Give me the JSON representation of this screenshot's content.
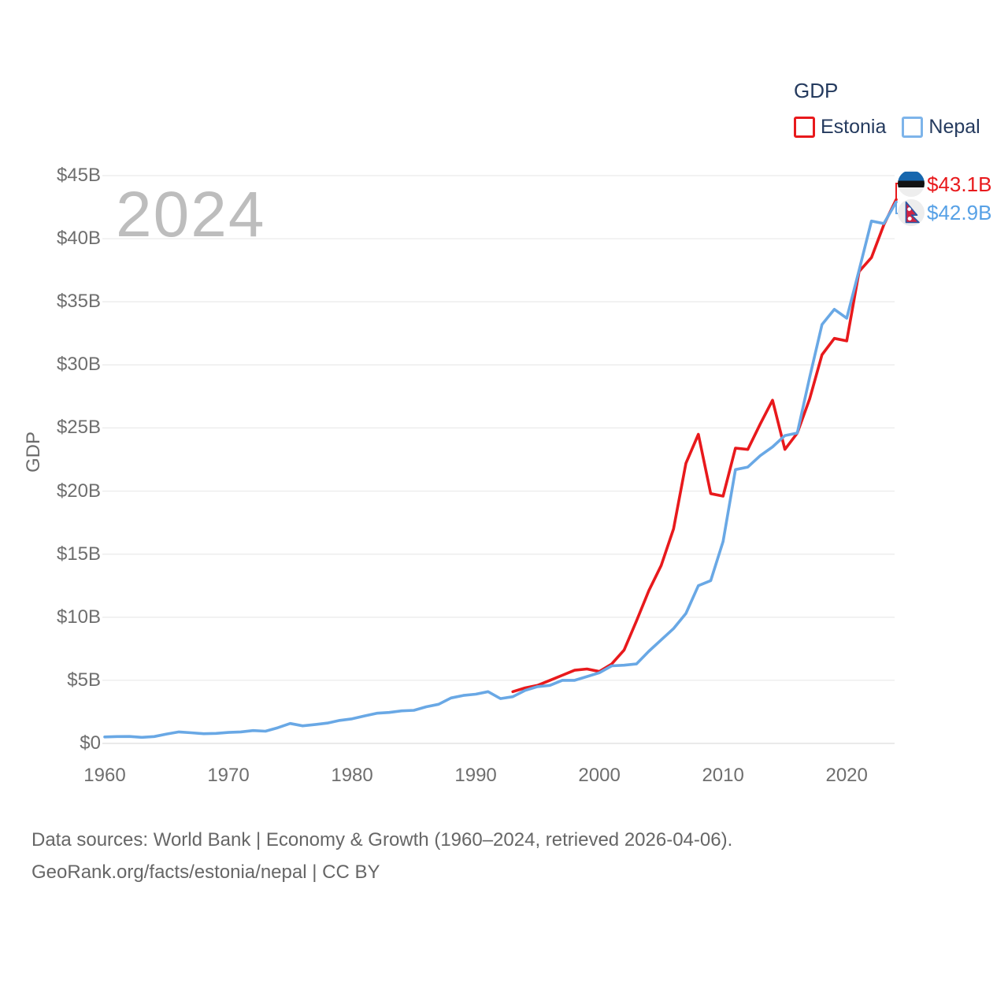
{
  "legend": {
    "title": "GDP",
    "items": [
      {
        "label": "Estonia",
        "color": "#e8191c"
      },
      {
        "label": "Nepal",
        "color": "#7db4ea"
      }
    ]
  },
  "watermark": "2024",
  "y_axis": {
    "title": "GDP",
    "ticks": [
      "$0",
      "$5B",
      "$10B",
      "$15B",
      "$20B",
      "$25B",
      "$30B",
      "$35B",
      "$40B",
      "$45B"
    ]
  },
  "x_axis": {
    "ticks": [
      "1960",
      "1970",
      "1980",
      "1990",
      "2000",
      "2010",
      "2020"
    ]
  },
  "end_labels": {
    "estonia": "$43.1B",
    "nepal": "$42.9B"
  },
  "footer": {
    "line1": "Data sources: World Bank | Economy & Growth (1960–2024, retrieved 2026-04-06).",
    "line2": "GeoRank.org/facts/estonia/nepal | CC BY"
  },
  "colors": {
    "estonia_line": "#e8191c",
    "nepal_line": "#69a8e5",
    "grid": "#ebebeb",
    "grid_zero": "#dedede",
    "axis_text": "#6e6e6e",
    "legend_text": "#243a5e",
    "watermark": "#bdbdbd",
    "footer_text": "#666666",
    "estonia_flag_blue": "#1767ae",
    "nepal_flag_crimson": "#cf2342",
    "nepal_flag_border": "#2757a5"
  },
  "chart_data": {
    "type": "line",
    "title": "GDP",
    "xlabel": "",
    "ylabel": "GDP",
    "xlim": [
      1960,
      2024
    ],
    "ylim": [
      0,
      45
    ],
    "grid": "horizontal",
    "legend_position": "top-right",
    "series": [
      {
        "name": "Estonia",
        "color": "#e8191c",
        "end_value_label": "$43.1B",
        "years": [
          1993,
          1994,
          1995,
          1996,
          1997,
          1998,
          1999,
          2000,
          2001,
          2002,
          2003,
          2004,
          2005,
          2006,
          2007,
          2008,
          2009,
          2010,
          2011,
          2012,
          2013,
          2014,
          2015,
          2016,
          2017,
          2018,
          2019,
          2020,
          2021,
          2022,
          2023,
          2024
        ],
        "values": [
          4.1,
          4.4,
          4.6,
          5.0,
          5.4,
          5.8,
          5.9,
          5.7,
          6.3,
          7.4,
          9.7,
          12.1,
          14.1,
          17.0,
          22.2,
          24.5,
          19.8,
          19.6,
          23.4,
          23.3,
          25.3,
          27.2,
          23.3,
          24.6,
          27.3,
          30.8,
          32.1,
          31.9,
          37.4,
          38.5,
          41.1,
          43.1
        ]
      },
      {
        "name": "Nepal",
        "color": "#69a8e5",
        "end_value_label": "$42.9B",
        "years": [
          1960,
          1961,
          1962,
          1963,
          1964,
          1965,
          1966,
          1967,
          1968,
          1969,
          1970,
          1971,
          1972,
          1973,
          1974,
          1975,
          1976,
          1977,
          1978,
          1979,
          1980,
          1981,
          1982,
          1983,
          1984,
          1985,
          1986,
          1987,
          1988,
          1989,
          1990,
          1991,
          1992,
          1993,
          1994,
          1995,
          1996,
          1997,
          1998,
          1999,
          2000,
          2001,
          2002,
          2003,
          2004,
          2005,
          2006,
          2007,
          2008,
          2009,
          2010,
          2011,
          2012,
          2013,
          2014,
          2015,
          2016,
          2017,
          2018,
          2019,
          2020,
          2021,
          2022,
          2023,
          2024
        ],
        "values": [
          0.51,
          0.54,
          0.55,
          0.48,
          0.54,
          0.74,
          0.91,
          0.84,
          0.77,
          0.79,
          0.87,
          0.91,
          1.02,
          0.97,
          1.24,
          1.58,
          1.39,
          1.49,
          1.61,
          1.82,
          1.95,
          2.18,
          2.39,
          2.45,
          2.58,
          2.62,
          2.9,
          3.1,
          3.6,
          3.8,
          3.9,
          4.1,
          3.55,
          3.7,
          4.2,
          4.5,
          4.6,
          5.0,
          5.0,
          5.3,
          5.6,
          6.15,
          6.2,
          6.3,
          7.3,
          8.2,
          9.1,
          10.3,
          12.5,
          12.9,
          16.0,
          21.7,
          21.9,
          22.8,
          23.5,
          24.4,
          24.6,
          29.0,
          33.2,
          34.4,
          33.7,
          37.5,
          41.4,
          41.2,
          42.9
        ]
      }
    ]
  }
}
